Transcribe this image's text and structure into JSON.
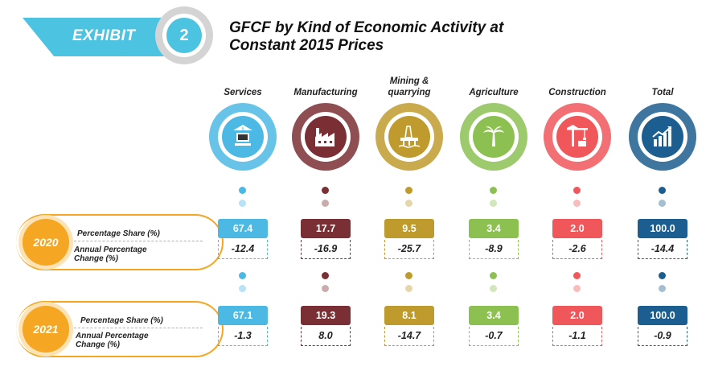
{
  "header": {
    "exhibit_label": "EXHIBIT",
    "exhibit_number": "2",
    "title_line1": "GFCF by Kind of Economic Activity at",
    "title_line2": "Constant 2015 Prices"
  },
  "rows": [
    {
      "year": "2020",
      "share_label": "Percentage Share (%)",
      "change_label_1": "Annual Percentage",
      "change_label_2": "Change (%)"
    },
    {
      "year": "2021",
      "share_label": "Percentage Share (%)",
      "change_label_1": "Annual Percentage",
      "change_label_2": "Change (%)"
    }
  ],
  "categories": [
    {
      "name_1": "Services",
      "name_2": "",
      "icon": "bank-computer-icon",
      "color": "#4cb8e4",
      "y2020": {
        "share": "67.4",
        "change": "-12.4"
      },
      "y2021": {
        "share": "67.1",
        "change": "-1.3"
      }
    },
    {
      "name_1": "Manufacturing",
      "name_2": "",
      "icon": "factory-icon",
      "color": "#7a2f34",
      "y2020": {
        "share": "17.7",
        "change": "-16.9"
      },
      "y2021": {
        "share": "19.3",
        "change": "8.0"
      }
    },
    {
      "name_1": "Mining &",
      "name_2": "quarrying",
      "icon": "oil-rig-icon",
      "color": "#bf9b2e",
      "y2020": {
        "share": "9.5",
        "change": "-25.7"
      },
      "y2021": {
        "share": "8.1",
        "change": "-14.7"
      }
    },
    {
      "name_1": "Agriculture",
      "name_2": "",
      "icon": "palm-tree-icon",
      "color": "#8cc152",
      "y2020": {
        "share": "3.4",
        "change": "-8.9"
      },
      "y2021": {
        "share": "3.4",
        "change": "-0.7"
      }
    },
    {
      "name_1": "Construction",
      "name_2": "",
      "icon": "crane-icon",
      "color": "#f0575a",
      "y2020": {
        "share": "2.0",
        "change": "-2.6"
      },
      "y2021": {
        "share": "2.0",
        "change": "-1.1"
      }
    },
    {
      "name_1": "Total",
      "name_2": "",
      "icon": "growth-chart-icon",
      "color": "#1c5e8f",
      "y2020": {
        "share": "100.0",
        "change": "-14.4"
      },
      "y2021": {
        "share": "100.0",
        "change": "-0.9"
      }
    }
  ]
}
